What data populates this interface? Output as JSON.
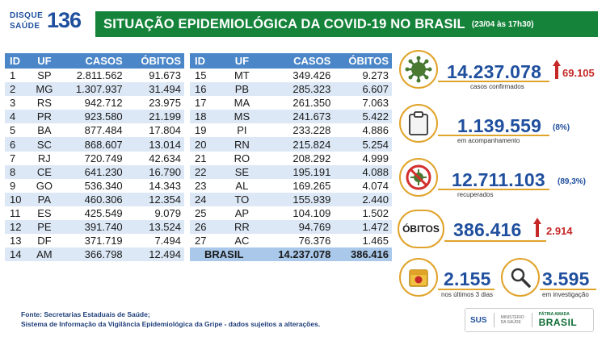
{
  "header": {
    "logo_line1": "DISQUE",
    "logo_line2": "SAÚDE",
    "logo_number": "136",
    "title": "SITUAÇÃO EPIDEMIOLÓGICA DA COVID-19 NO BRASIL",
    "date": "(23/04 às 17h30)"
  },
  "table": {
    "columns": [
      "ID",
      "UF",
      "CASOS",
      "ÓBITOS"
    ],
    "left_rows": [
      [
        "1",
        "SP",
        "2.811.562",
        "91.673"
      ],
      [
        "2",
        "MG",
        "1.307.937",
        "31.494"
      ],
      [
        "3",
        "RS",
        "942.712",
        "23.975"
      ],
      [
        "4",
        "PR",
        "923.580",
        "21.199"
      ],
      [
        "5",
        "BA",
        "877.484",
        "17.804"
      ],
      [
        "6",
        "SC",
        "868.607",
        "13.014"
      ],
      [
        "7",
        "RJ",
        "720.749",
        "42.634"
      ],
      [
        "8",
        "CE",
        "641.230",
        "16.790"
      ],
      [
        "9",
        "GO",
        "536.340",
        "14.343"
      ],
      [
        "10",
        "PA",
        "460.306",
        "12.354"
      ],
      [
        "11",
        "ES",
        "425.549",
        "9.079"
      ],
      [
        "12",
        "PE",
        "391.740",
        "13.524"
      ],
      [
        "13",
        "DF",
        "371.719",
        "7.494"
      ],
      [
        "14",
        "AM",
        "366.798",
        "12.494"
      ]
    ],
    "right_rows": [
      [
        "15",
        "MT",
        "349.426",
        "9.273"
      ],
      [
        "16",
        "PB",
        "285.323",
        "6.607"
      ],
      [
        "17",
        "MA",
        "261.350",
        "7.063"
      ],
      [
        "18",
        "MS",
        "241.673",
        "5.422"
      ],
      [
        "19",
        "PI",
        "233.228",
        "4.886"
      ],
      [
        "20",
        "RN",
        "215.824",
        "5.254"
      ],
      [
        "21",
        "RO",
        "208.292",
        "4.999"
      ],
      [
        "22",
        "SE",
        "195.191",
        "4.088"
      ],
      [
        "23",
        "AL",
        "169.265",
        "4.074"
      ],
      [
        "24",
        "TO",
        "155.939",
        "2.440"
      ],
      [
        "25",
        "AP",
        "104.109",
        "1.502"
      ],
      [
        "26",
        "RR",
        "94.769",
        "1.472"
      ],
      [
        "27",
        "AC",
        "76.376",
        "1.465"
      ]
    ],
    "total": {
      "label": "BRASIL",
      "casos": "14.237.078",
      "obitos": "386.416"
    }
  },
  "stats": {
    "confirmados": {
      "value": "14.237.078",
      "delta": "69.105",
      "label": "casos confirmados"
    },
    "acompanhamento": {
      "value": "1.139.559",
      "pct": "(8%)",
      "label": "em acompanhamento"
    },
    "recuperados": {
      "value": "12.711.103",
      "pct": "(89,3%)",
      "label": "recuperados"
    },
    "obitos": {
      "badge": "ÓBITOS",
      "value": "386.416",
      "delta": "2.914"
    },
    "ultimos3": {
      "value": "2.155",
      "label": "nos últimos 3 dias"
    },
    "investigacao": {
      "value": "3.595",
      "label": "em investigação"
    }
  },
  "footer": {
    "line1": "Fonte: Secretarias Estaduais de Saúde;",
    "line2": "Sistema de Informação da Vigilância Epidemiológica da Gripe - dados sujeitos a alterações."
  },
  "logos": {
    "sus": "SUS",
    "ministerio": "MINISTÉRIO DA SAÚDE",
    "patria": "PÁTRIA AMADA",
    "brasil": "BRASIL"
  },
  "colors": {
    "title_green": "#15843a",
    "header_blue": "#4a86c8",
    "accent_gold": "#e0a32a",
    "number_blue": "#1f4f9e",
    "delta_red": "#c62828"
  }
}
